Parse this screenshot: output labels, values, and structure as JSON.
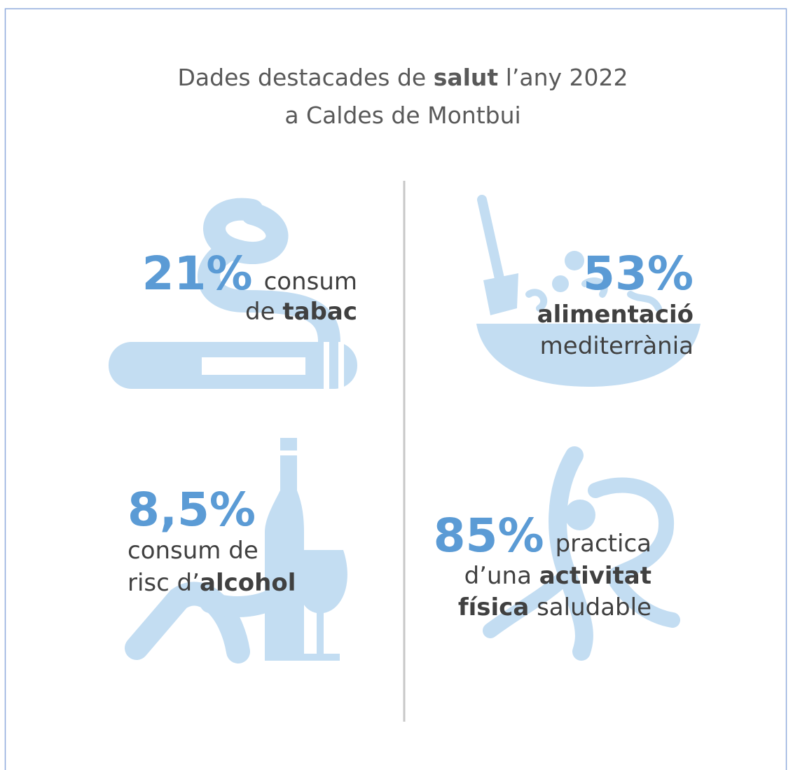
{
  "header": {
    "title_lines": [
      [
        {
          "text": "Dades destacades de "
        },
        {
          "text": "salut",
          "bold": true
        },
        {
          "text": " l’any 2022"
        }
      ],
      [
        {
          "text": "a Caldes de Montbui"
        }
      ]
    ]
  },
  "items": [
    {
      "stat": "21%",
      "lines": [
        [
          {
            "text": "consum"
          }
        ],
        [
          {
            "text": "de "
          },
          {
            "text": "tabac",
            "bold": true
          }
        ]
      ]
    },
    {
      "stat": "53%",
      "lines": [
        [
          {
            "text": "alimentació",
            "bold": true
          }
        ],
        [
          {
            "text": "mediterrània"
          }
        ]
      ]
    },
    {
      "stat": "8,5%",
      "lines": [
        [
          {
            "text": "consum de"
          }
        ],
        [
          {
            "text": "risc d’"
          },
          {
            "text": "alcohol",
            "bold": true
          }
        ]
      ]
    },
    {
      "stat": "85%",
      "lines": [
        [
          {
            "text": "practica"
          }
        ],
        [
          {
            "text": "d’una "
          },
          {
            "text": "activitat",
            "bold": true
          }
        ],
        [
          {
            "text": "física",
            "bold": true
          },
          {
            "text": " saludable"
          }
        ]
      ]
    }
  ]
}
